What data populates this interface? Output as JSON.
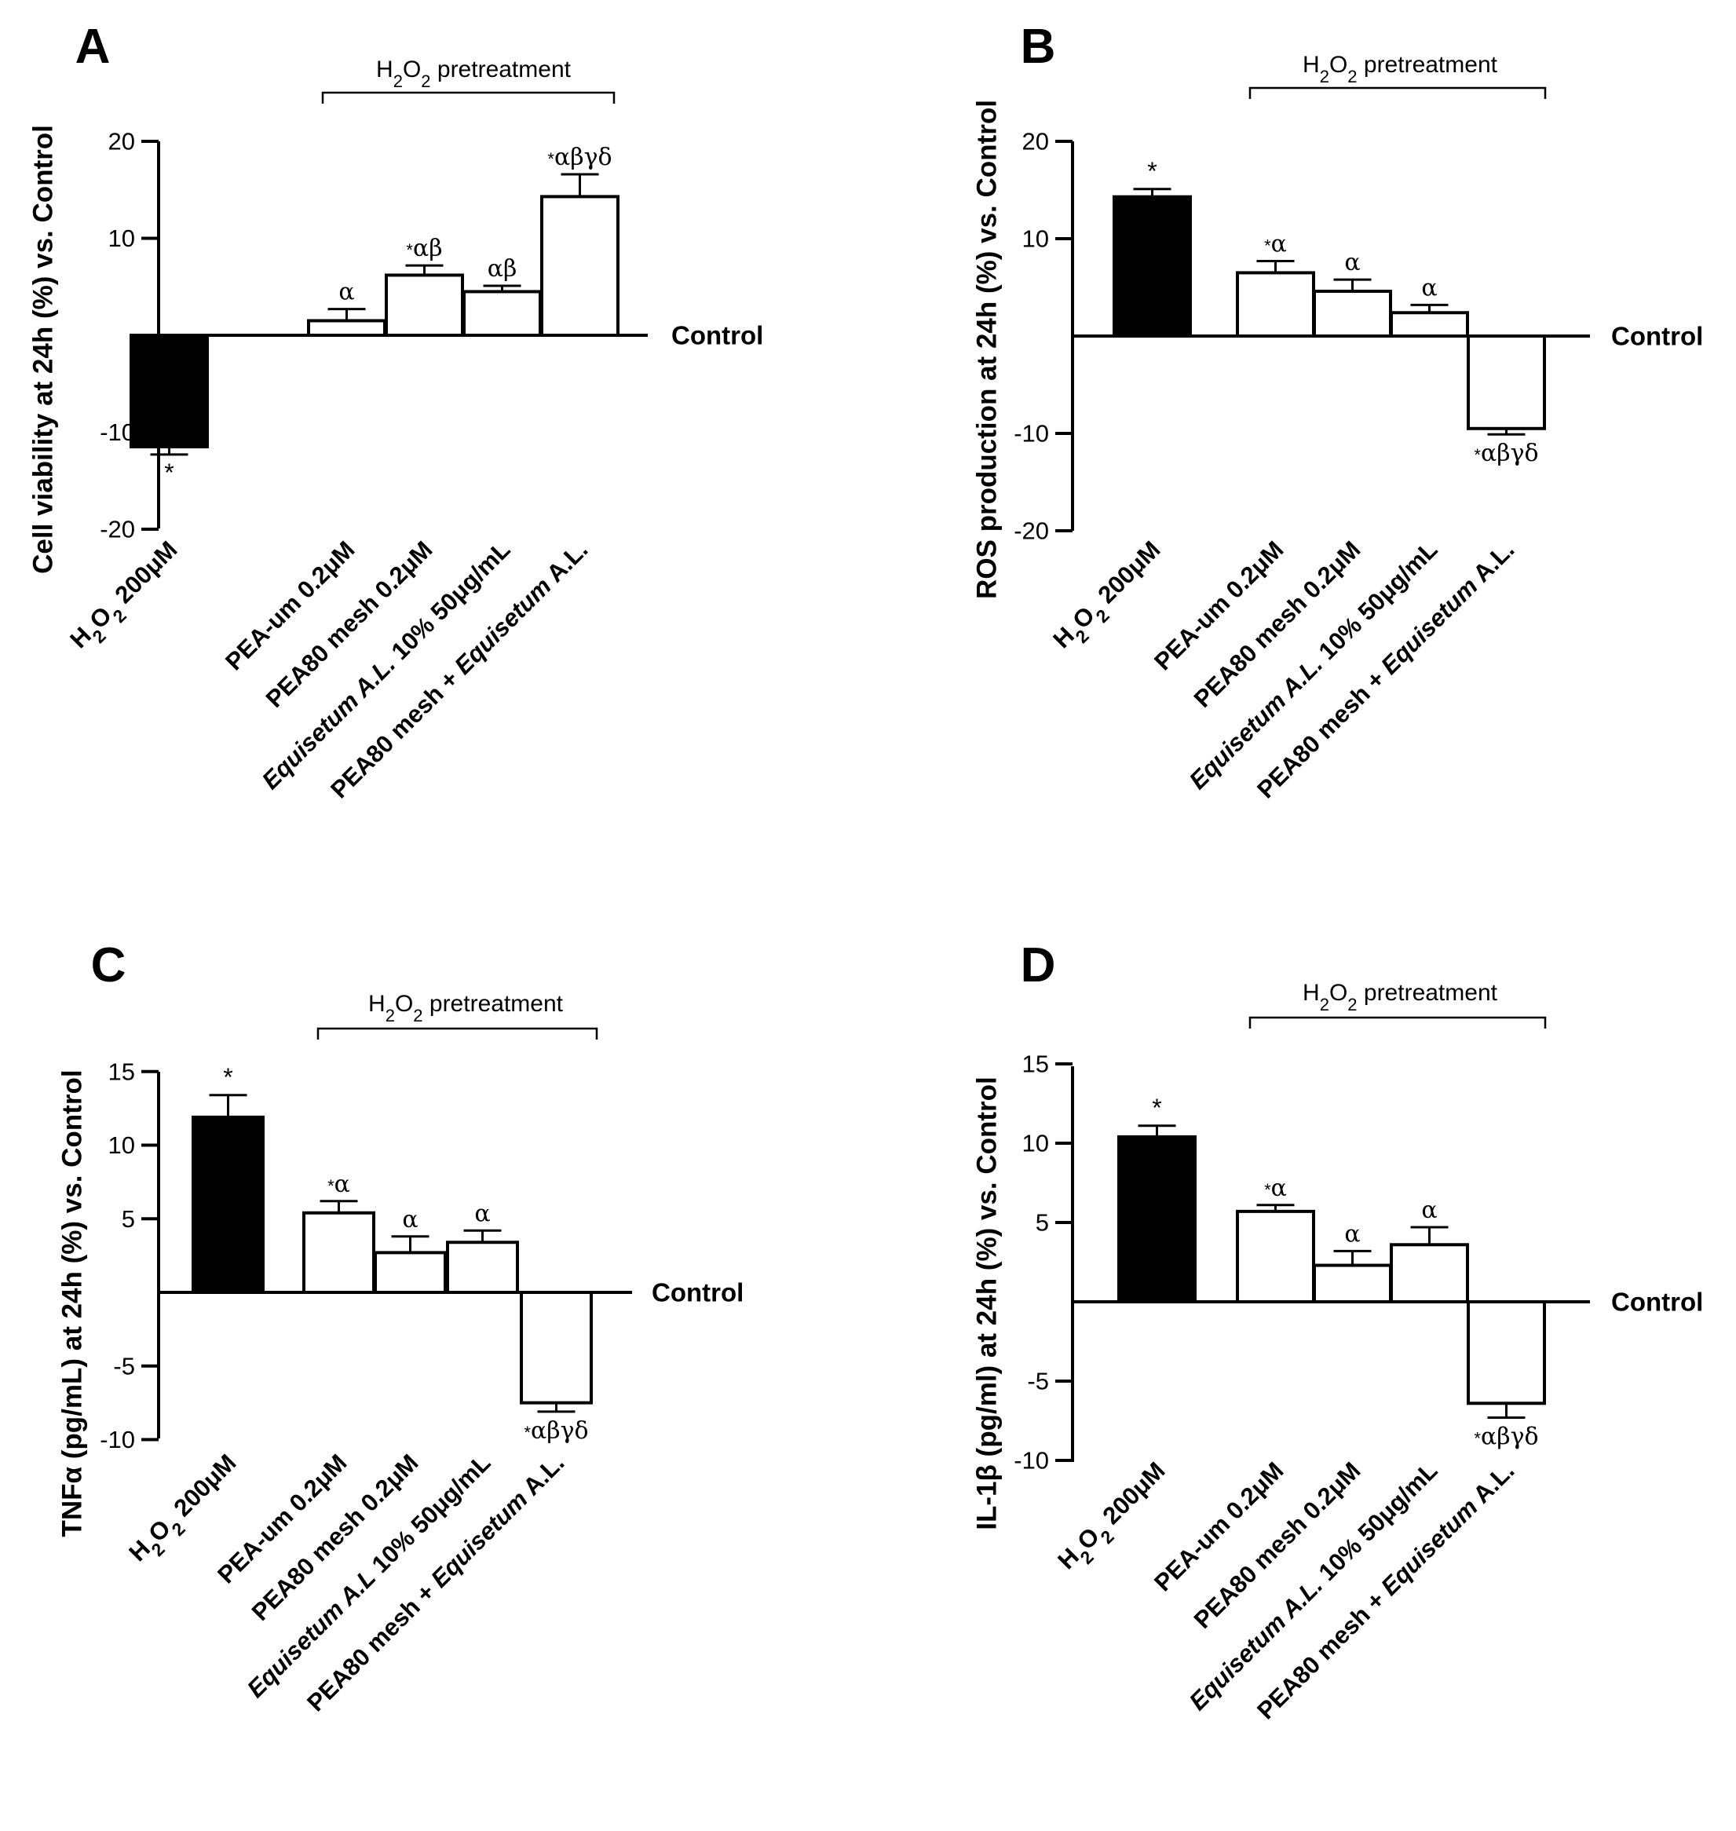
{
  "chart_data": [
    {
      "panel": "A",
      "type": "bar",
      "ylabel": "Cell viability at 24h (%) vs. Control",
      "ylim": [
        -20,
        20
      ],
      "yticks": [
        "20",
        "10",
        "-10",
        "-20"
      ],
      "tick_values": [
        20,
        10,
        -10,
        -20
      ],
      "zero_label": "Control",
      "bracket": {
        "text_pre": "H",
        "sub1": "2",
        "mid": "O",
        "sub2": "2",
        "text_post": " pretreatment"
      },
      "categories": [
        [
          {
            "t": "H"
          },
          {
            "t": "2",
            "sub": true
          },
          {
            "t": "O"
          },
          {
            "t": "2",
            "sub": true
          },
          {
            "t": " 200μM"
          }
        ],
        [
          {
            "t": "PEA-um 0.2μM"
          }
        ],
        [
          {
            "t": "PEA80 mesh 0.2μM"
          }
        ],
        [
          {
            "t": "Equisetum A.L.",
            "it": true
          },
          {
            "t": " 10% 50μg/mL"
          }
        ],
        [
          {
            "t": "PEA80 mesh + "
          },
          {
            "t": "Equisetum",
            "it": true
          },
          {
            "t": " A.L."
          }
        ]
      ],
      "values": [
        -11.5,
        1.5,
        6.2,
        4.5,
        14.3
      ],
      "errors": [
        0.8,
        1.2,
        1.0,
        0.6,
        2.3
      ],
      "fills": [
        "#000000",
        "#ffffff",
        "#ffffff",
        "#ffffff",
        "#ffffff"
      ],
      "stars": [
        "*",
        "",
        "*",
        "",
        "*"
      ],
      "greeks": [
        "",
        "α",
        "αβ",
        "αβ",
        "αβγδ"
      ]
    },
    {
      "panel": "B",
      "type": "bar",
      "ylabel": "ROS production at 24h (%) vs. Control",
      "ylim": [
        -20,
        20
      ],
      "yticks": [
        "20",
        "10",
        "-10",
        "-20"
      ],
      "tick_values": [
        20,
        10,
        -10,
        -20
      ],
      "zero_label": "Control",
      "bracket": {
        "text_pre": "H",
        "sub1": "2",
        "mid": "O",
        "sub2": "2",
        "text_post": " pretreatment"
      },
      "categories": [
        [
          {
            "t": "H"
          },
          {
            "t": "2",
            "sub": true
          },
          {
            "t": "O"
          },
          {
            "t": "2",
            "sub": true
          },
          {
            "t": " 200μM"
          }
        ],
        [
          {
            "t": "PEA-um 0.2μM"
          }
        ],
        [
          {
            "t": "PEA80 mesh 0.2μM"
          }
        ],
        [
          {
            "t": "Equisetum A.L.",
            "it": true
          },
          {
            "t": " 10% 50μg/mL"
          }
        ],
        [
          {
            "t": "PEA80 mesh + "
          },
          {
            "t": "Equisetum",
            "it": true
          },
          {
            "t": " A.L."
          }
        ]
      ],
      "values": [
        14.3,
        6.5,
        4.6,
        2.4,
        -9.5
      ],
      "errors": [
        0.8,
        1.2,
        1.2,
        0.8,
        0.6
      ],
      "fills": [
        "#000000",
        "#ffffff",
        "#ffffff",
        "#ffffff",
        "#ffffff"
      ],
      "stars": [
        "*",
        "*",
        "",
        "",
        "*"
      ],
      "greeks": [
        "",
        "α",
        "α",
        "α",
        "αβγδ"
      ]
    },
    {
      "panel": "C",
      "type": "bar",
      "ylabel": "TNFα (pg/mL) at 24h (%) vs. Control",
      "ylim": [
        -10,
        15
      ],
      "yticks": [
        "15",
        "10",
        "5",
        "-5",
        "-10"
      ],
      "tick_values": [
        15,
        10,
        5,
        -5,
        -10
      ],
      "zero_label": "Control",
      "bracket": {
        "text_pre": "H",
        "sub1": "2",
        "mid": "O",
        "sub2": "2",
        "text_post": " pretreatment"
      },
      "categories": [
        [
          {
            "t": "H"
          },
          {
            "t": "2",
            "sub": true
          },
          {
            "t": "O"
          },
          {
            "t": "2",
            "sub": true
          },
          {
            "t": " 200μM"
          }
        ],
        [
          {
            "t": "PEA-um 0.2μM"
          }
        ],
        [
          {
            "t": "PEA80 mesh 0.2μM"
          }
        ],
        [
          {
            "t": "Equisetum A.L",
            "it": true
          },
          {
            "t": " 10% 50μg/mL"
          }
        ],
        [
          {
            "t": "PEA80 mesh + "
          },
          {
            "t": "Equisetum",
            "it": true
          },
          {
            "t": " A.L."
          }
        ]
      ],
      "values": [
        11.9,
        5.4,
        2.7,
        3.4,
        -7.5
      ],
      "errors": [
        1.5,
        0.8,
        1.1,
        0.8,
        0.6
      ],
      "fills": [
        "#000000",
        "#ffffff",
        "#ffffff",
        "#ffffff",
        "#ffffff"
      ],
      "stars": [
        "*",
        "*",
        "",
        "",
        "*"
      ],
      "greeks": [
        "",
        "α",
        "α",
        "α",
        "αβγδ"
      ]
    },
    {
      "panel": "D",
      "type": "bar",
      "ylabel": "IL-1β (pg/ml) at 24h (%) vs. Control",
      "ylim": [
        -10,
        15
      ],
      "yticks": [
        "15",
        "10",
        "5",
        "-5",
        "-10"
      ],
      "tick_values": [
        15,
        10,
        5,
        -5,
        -10
      ],
      "zero_label": "Control",
      "bracket": {
        "text_pre": "H",
        "sub1": "2",
        "mid": "O",
        "sub2": "2",
        "text_post": " pretreatment"
      },
      "categories": [
        [
          {
            "t": "H"
          },
          {
            "t": "2",
            "sub": true
          },
          {
            "t": "O"
          },
          {
            "t": "2",
            "sub": true
          },
          {
            "t": " 200μM"
          }
        ],
        [
          {
            "t": "PEA-um 0.2μM"
          }
        ],
        [
          {
            "t": "PEA80 mesh 0.2μM"
          }
        ],
        [
          {
            "t": "Equisetum A.L.",
            "it": true
          },
          {
            "t": " 10% 50μg/mL"
          }
        ],
        [
          {
            "t": "PEA80 mesh + "
          },
          {
            "t": "Equisetum",
            "it": true
          },
          {
            "t": " A.L."
          }
        ]
      ],
      "values": [
        10.4,
        5.7,
        2.3,
        3.6,
        -6.4
      ],
      "errors": [
        0.7,
        0.4,
        0.9,
        1.1,
        0.9
      ],
      "fills": [
        "#000000",
        "#ffffff",
        "#ffffff",
        "#ffffff",
        "#ffffff"
      ],
      "stars": [
        "*",
        "*",
        "",
        "",
        "*"
      ],
      "greeks": [
        "",
        "α",
        "α",
        "α",
        "αβγδ"
      ]
    }
  ]
}
